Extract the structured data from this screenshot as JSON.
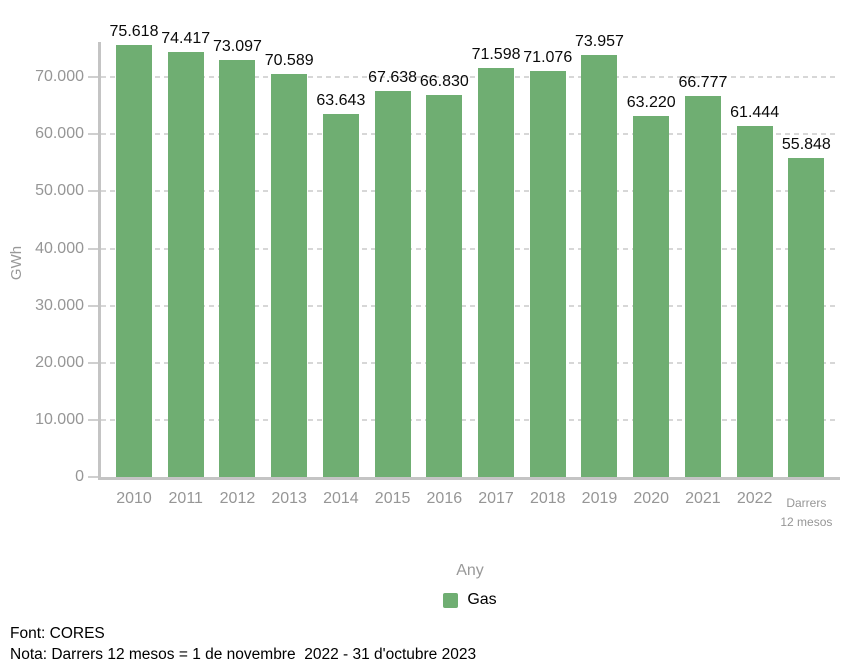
{
  "chart_data": {
    "type": "bar",
    "title": "",
    "categories": [
      "2010",
      "2011",
      "2012",
      "2013",
      "2014",
      "2015",
      "2016",
      "2017",
      "2018",
      "2019",
      "2020",
      "2021",
      "2022",
      "Darrers 12 mesos"
    ],
    "series": [
      {
        "name": "Gas",
        "values": [
          75618,
          74417,
          73097,
          70589,
          63643,
          67638,
          66830,
          71598,
          71076,
          73957,
          63220,
          66777,
          61444,
          55848
        ]
      }
    ],
    "value_labels": [
      "75.618",
      "74.417",
      "73.097",
      "70.589",
      "63.643",
      "67.638",
      "66.830",
      "71.598",
      "71.076",
      "73.957",
      "63.220",
      "66.777",
      "61.444",
      "55.848"
    ],
    "xlabel": "Any",
    "ylabel": "GWh",
    "ylim": [
      0,
      76000
    ],
    "yticks": [
      0,
      10000,
      20000,
      30000,
      40000,
      50000,
      60000,
      70000
    ],
    "ytick_labels": [
      "0",
      "10.000",
      "20.000",
      "30.000",
      "40.000",
      "50.000",
      "60.000",
      "70.000"
    ],
    "grid": true,
    "legend_position": "bottom",
    "last_category_lines": [
      "Darrers",
      "12 mesos"
    ]
  },
  "colors": {
    "bar": "#6fae72",
    "axis_line": "#c4c4c4",
    "grid_line": "#d7d7d7",
    "tick_label": "#969696",
    "axis_title": "#999999",
    "value_label": "#0a0a0a",
    "legend_text": "#000000",
    "footer_text": "#000000"
  },
  "footer": {
    "source": "Font: CORES",
    "note": "Nota: Darrers 12 mesos = 1 de novembre  2022 - 31 d'octubre 2023"
  }
}
